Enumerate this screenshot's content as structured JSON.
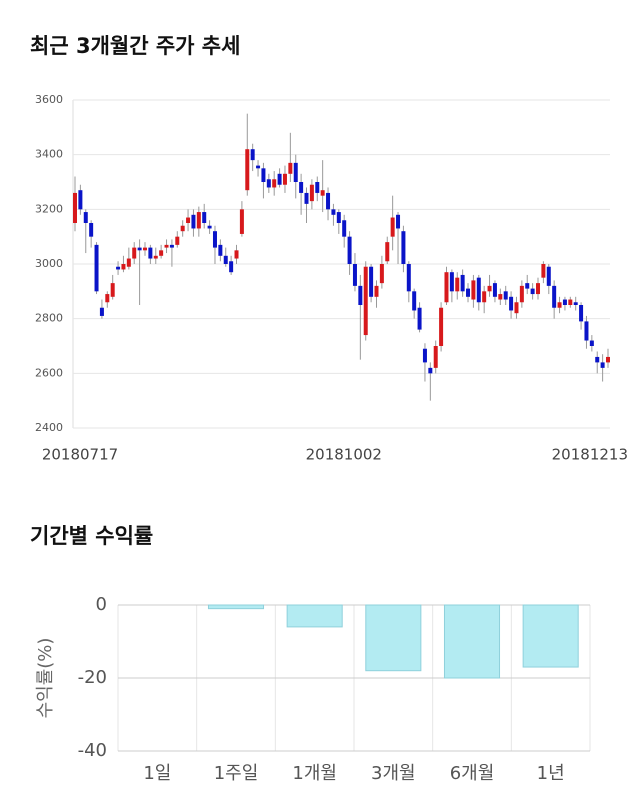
{
  "chart_data": [
    {
      "type": "candlestick",
      "title": "최근 3개월간 주가 추세",
      "categories": [
        "20180717",
        null,
        null,
        null,
        null,
        null,
        null,
        null,
        null,
        null,
        null,
        null,
        null,
        null,
        null,
        null,
        null,
        null,
        null,
        null,
        null,
        null,
        null,
        null,
        null,
        null,
        null,
        null,
        null,
        null,
        null,
        null,
        null,
        null,
        null,
        null,
        null,
        null,
        null,
        null,
        null,
        null,
        null,
        null,
        null,
        null,
        null,
        null,
        null,
        "20181002",
        null,
        null,
        null,
        null,
        null,
        null,
        null,
        null,
        null,
        null,
        null,
        null,
        null,
        null,
        null,
        null,
        null,
        null,
        null,
        null,
        null,
        null,
        null,
        null,
        null,
        null,
        null,
        null,
        null,
        null,
        null,
        null,
        null,
        null,
        null,
        null,
        null,
        null,
        null,
        null,
        null,
        null,
        null,
        null,
        null,
        null,
        null,
        null,
        null,
        "20181213"
      ],
      "open": [
        3150,
        3270,
        3190,
        3150,
        3070,
        2840,
        2860,
        2880,
        2990,
        2980,
        2990,
        3020,
        3060,
        3050,
        3060,
        3020,
        3030,
        3060,
        3070,
        3070,
        3120,
        3150,
        3180,
        3130,
        3190,
        3140,
        3120,
        3070,
        3030,
        3010,
        3020,
        3110,
        3270,
        3420,
        3360,
        3350,
        3310,
        3280,
        3330,
        3290,
        3330,
        3370,
        3300,
        3260,
        3230,
        3300,
        3250,
        3260,
        3200,
        3190,
        3160,
        3100,
        3000,
        2920,
        2740,
        2990,
        2880,
        2930,
        3010,
        3100,
        3180,
        3120,
        3000,
        2900,
        2840,
        2690,
        2620,
        2620,
        2700,
        2860,
        2970,
        2900,
        2960,
        2910,
        2870,
        2950,
        2860,
        2900,
        2930,
        2870,
        2900,
        2880,
        2820,
        2860,
        2930,
        2910,
        2890,
        2950,
        2990,
        2920,
        2840,
        2870,
        2850,
        2860,
        2850,
        2790,
        2720,
        2660,
        2640,
        2640
      ],
      "high": [
        3320,
        3290,
        3200,
        3160,
        3080,
        2870,
        2900,
        2960,
        3010,
        3030,
        3060,
        3080,
        3090,
        3080,
        3070,
        3060,
        3070,
        3090,
        3090,
        3120,
        3160,
        3200,
        3200,
        3210,
        3220,
        3160,
        3140,
        3090,
        3060,
        3030,
        3070,
        3230,
        3550,
        3440,
        3380,
        3370,
        3330,
        3340,
        3350,
        3360,
        3480,
        3400,
        3330,
        3280,
        3310,
        3320,
        3380,
        3280,
        3220,
        3200,
        3180,
        3120,
        3040,
        2960,
        3010,
        3000,
        2940,
        3030,
        3100,
        3250,
        3190,
        3140,
        3010,
        2910,
        2860,
        2710,
        2640,
        2720,
        2860,
        2990,
        2980,
        2970,
        2980,
        2930,
        2960,
        2960,
        2920,
        2960,
        2940,
        2910,
        2920,
        2900,
        2880,
        2940,
        2960,
        2930,
        2950,
        3010,
        3000,
        2940,
        2880,
        2880,
        2880,
        2880,
        2860,
        2810,
        2740,
        2680,
        2670,
        2690
      ],
      "low": [
        3120,
        3180,
        3040,
        3060,
        2890,
        2800,
        2840,
        2870,
        2960,
        2970,
        2980,
        3000,
        2850,
        3030,
        3000,
        3000,
        3020,
        3040,
        2990,
        3060,
        3100,
        3120,
        3100,
        3100,
        3130,
        3110,
        3000,
        3010,
        2990,
        2960,
        3000,
        3100,
        3250,
        3340,
        3320,
        3240,
        3260,
        3250,
        3280,
        3260,
        3300,
        3240,
        3180,
        3150,
        3200,
        3230,
        3190,
        3160,
        3140,
        3110,
        3060,
        2960,
        2900,
        2650,
        2720,
        2860,
        2840,
        2910,
        3000,
        3050,
        3000,
        2970,
        2860,
        2800,
        2750,
        2570,
        2500,
        2600,
        2680,
        2850,
        2860,
        2870,
        2880,
        2860,
        2840,
        2830,
        2820,
        2880,
        2860,
        2850,
        2850,
        2800,
        2800,
        2840,
        2890,
        2870,
        2870,
        2930,
        2890,
        2800,
        2820,
        2830,
        2840,
        2830,
        2760,
        2690,
        2680,
        2600,
        2570,
        2620
      ],
      "close": [
        3260,
        3200,
        3150,
        3100,
        2900,
        2810,
        2890,
        2930,
        2980,
        3000,
        3020,
        3060,
        3050,
        3060,
        3020,
        3030,
        3050,
        3070,
        3060,
        3100,
        3140,
        3170,
        3130,
        3190,
        3150,
        3130,
        3060,
        3030,
        3000,
        2970,
        3050,
        3200,
        3420,
        3380,
        3350,
        3300,
        3280,
        3310,
        3290,
        3330,
        3370,
        3300,
        3260,
        3220,
        3290,
        3260,
        3270,
        3200,
        3180,
        3150,
        3100,
        3000,
        2920,
        2850,
        2990,
        2880,
        2920,
        3000,
        3080,
        3170,
        3130,
        3000,
        2900,
        2830,
        2760,
        2640,
        2600,
        2700,
        2840,
        2970,
        2900,
        2950,
        2900,
        2880,
        2940,
        2860,
        2900,
        2920,
        2880,
        2890,
        2870,
        2830,
        2860,
        2920,
        2910,
        2890,
        2930,
        3000,
        2920,
        2840,
        2860,
        2850,
        2870,
        2850,
        2790,
        2720,
        2700,
        2640,
        2620,
        2660
      ],
      "up_color": "#d7191c",
      "down_color": "#0a14c8",
      "ylim": [
        2400,
        3600
      ],
      "yticks": [
        2400,
        2600,
        2800,
        3000,
        3200,
        3400,
        3600
      ],
      "grid": true
    },
    {
      "type": "bar",
      "title": "기간별 수익률",
      "ylabel": "수익률(%)",
      "categories": [
        "1일",
        "1주일",
        "1개월",
        "3개월",
        "6개월",
        "1년"
      ],
      "values": [
        0,
        -1,
        -6,
        -18,
        -20,
        -17
      ],
      "color": "#b3ebf2",
      "ylim": [
        -40,
        0
      ],
      "yticks": [
        0,
        -20,
        -40
      ],
      "grid": true
    }
  ]
}
